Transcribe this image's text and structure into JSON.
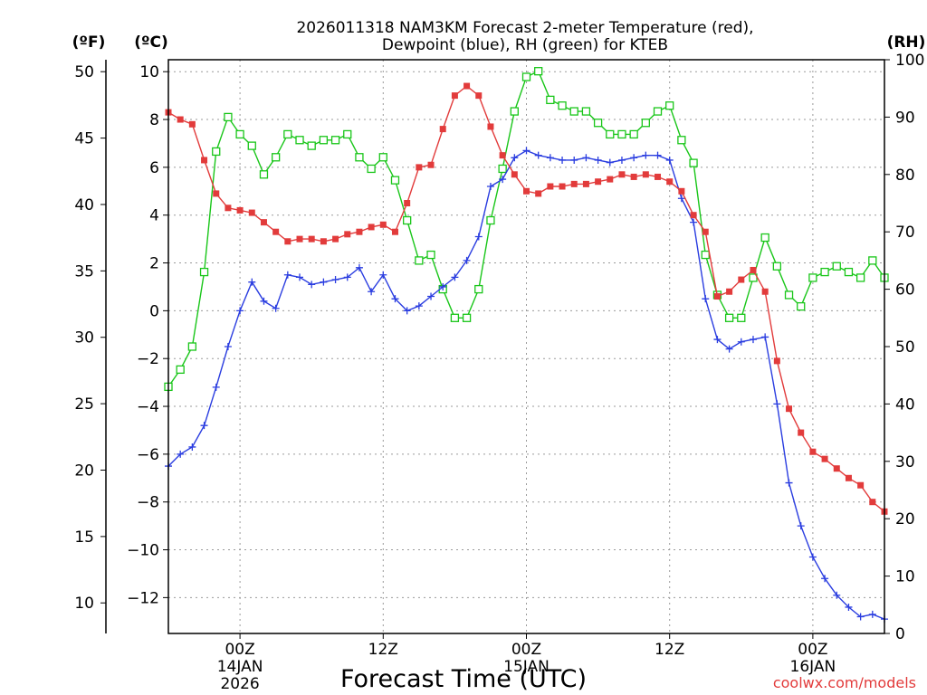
{
  "chart_data": {
    "type": "line",
    "title": "2026011318 NAM3KM Forecast 2-meter Temperature (red),",
    "title2": "Dewpoint (blue), RH (green) for KTEB",
    "xlabel": "Forecast Time (UTC)",
    "credit": "coolwx.com/models",
    "units": {
      "fahrenheit": "(ºF)",
      "celsius": "(ºC)",
      "rh": "(RH)"
    },
    "colors": {
      "temperature": "#e23b3b",
      "dewpoint": "#2a3de0",
      "rh": "#19c619",
      "grid": "#9a9a9a"
    },
    "x_range_hours": [
      0,
      60
    ],
    "x_ticks": [
      {
        "hour": 6,
        "label": "00Z",
        "date": "14JAN",
        "year": "2026"
      },
      {
        "hour": 18,
        "label": "12Z",
        "date": "",
        "year": ""
      },
      {
        "hour": 30,
        "label": "00Z",
        "date": "15JAN",
        "year": ""
      },
      {
        "hour": 42,
        "label": "12Z",
        "date": "",
        "year": ""
      },
      {
        "hour": 54,
        "label": "00Z",
        "date": "16JAN",
        "year": ""
      }
    ],
    "celsius_range": [
      -13.5,
      10.5
    ],
    "celsius_ticks": [
      -12,
      -10,
      -8,
      -6,
      -4,
      -2,
      0,
      2,
      4,
      6,
      8,
      10
    ],
    "fahrenheit_ticks": [
      10,
      15,
      20,
      25,
      30,
      35,
      40,
      45,
      50
    ],
    "rh_range": [
      0,
      100
    ],
    "rh_ticks": [
      0,
      10,
      20,
      30,
      40,
      50,
      60,
      70,
      80,
      90,
      100
    ],
    "series": [
      {
        "name": "Temperature (C)",
        "axis": "celsius",
        "values": [
          8.3,
          8.0,
          7.8,
          6.3,
          4.9,
          4.3,
          4.2,
          4.1,
          3.7,
          3.3,
          2.9,
          3.0,
          3.0,
          2.9,
          3.0,
          3.2,
          3.3,
          3.5,
          3.6,
          3.3,
          4.5,
          6.0,
          6.1,
          7.6,
          9.0,
          9.4,
          9.0,
          7.7,
          6.5,
          5.7,
          5.0,
          4.9,
          5.2,
          5.2,
          5.3,
          5.3,
          5.4,
          5.5,
          5.7,
          5.6,
          5.7,
          5.6,
          5.4,
          5.0,
          4.0,
          3.3,
          0.6,
          0.8,
          1.3,
          1.7,
          0.8,
          -2.1,
          -4.1,
          -5.1,
          -5.9,
          -6.2,
          -6.6,
          -7.0,
          -7.3,
          -8.0,
          -8.4
        ]
      },
      {
        "name": "Dewpoint (C)",
        "axis": "celsius",
        "values": [
          -6.5,
          -6.0,
          -5.7,
          -4.8,
          -3.2,
          -1.5,
          0.0,
          1.2,
          0.4,
          0.1,
          1.5,
          1.4,
          1.1,
          1.2,
          1.3,
          1.4,
          1.8,
          0.8,
          1.5,
          0.5,
          0.0,
          0.2,
          0.6,
          1.0,
          1.4,
          2.1,
          3.1,
          5.2,
          5.5,
          6.4,
          6.7,
          6.5,
          6.4,
          6.3,
          6.3,
          6.4,
          6.3,
          6.2,
          6.3,
          6.4,
          6.5,
          6.5,
          6.3,
          4.7,
          3.7,
          0.5,
          -1.2,
          -1.6,
          -1.3,
          -1.2,
          -1.1,
          -3.9,
          -7.2,
          -9.0,
          -10.3,
          -11.2,
          -11.9,
          -12.4,
          -12.8,
          -12.7,
          -12.9
        ]
      },
      {
        "name": "RH (%)",
        "axis": "rh",
        "values": [
          43,
          46,
          50,
          63,
          84,
          90,
          87,
          85,
          80,
          83,
          87,
          86,
          85,
          86,
          86,
          87,
          83,
          81,
          83,
          79,
          72,
          65,
          66,
          60,
          55,
          55,
          60,
          72,
          81,
          91,
          97,
          98,
          93,
          92,
          91,
          91,
          89,
          87,
          87,
          87,
          89,
          91,
          92,
          86,
          82,
          66,
          59,
          55,
          55,
          62,
          69,
          64,
          59,
          57,
          62,
          63,
          64,
          63,
          62,
          65,
          62
        ]
      }
    ]
  }
}
